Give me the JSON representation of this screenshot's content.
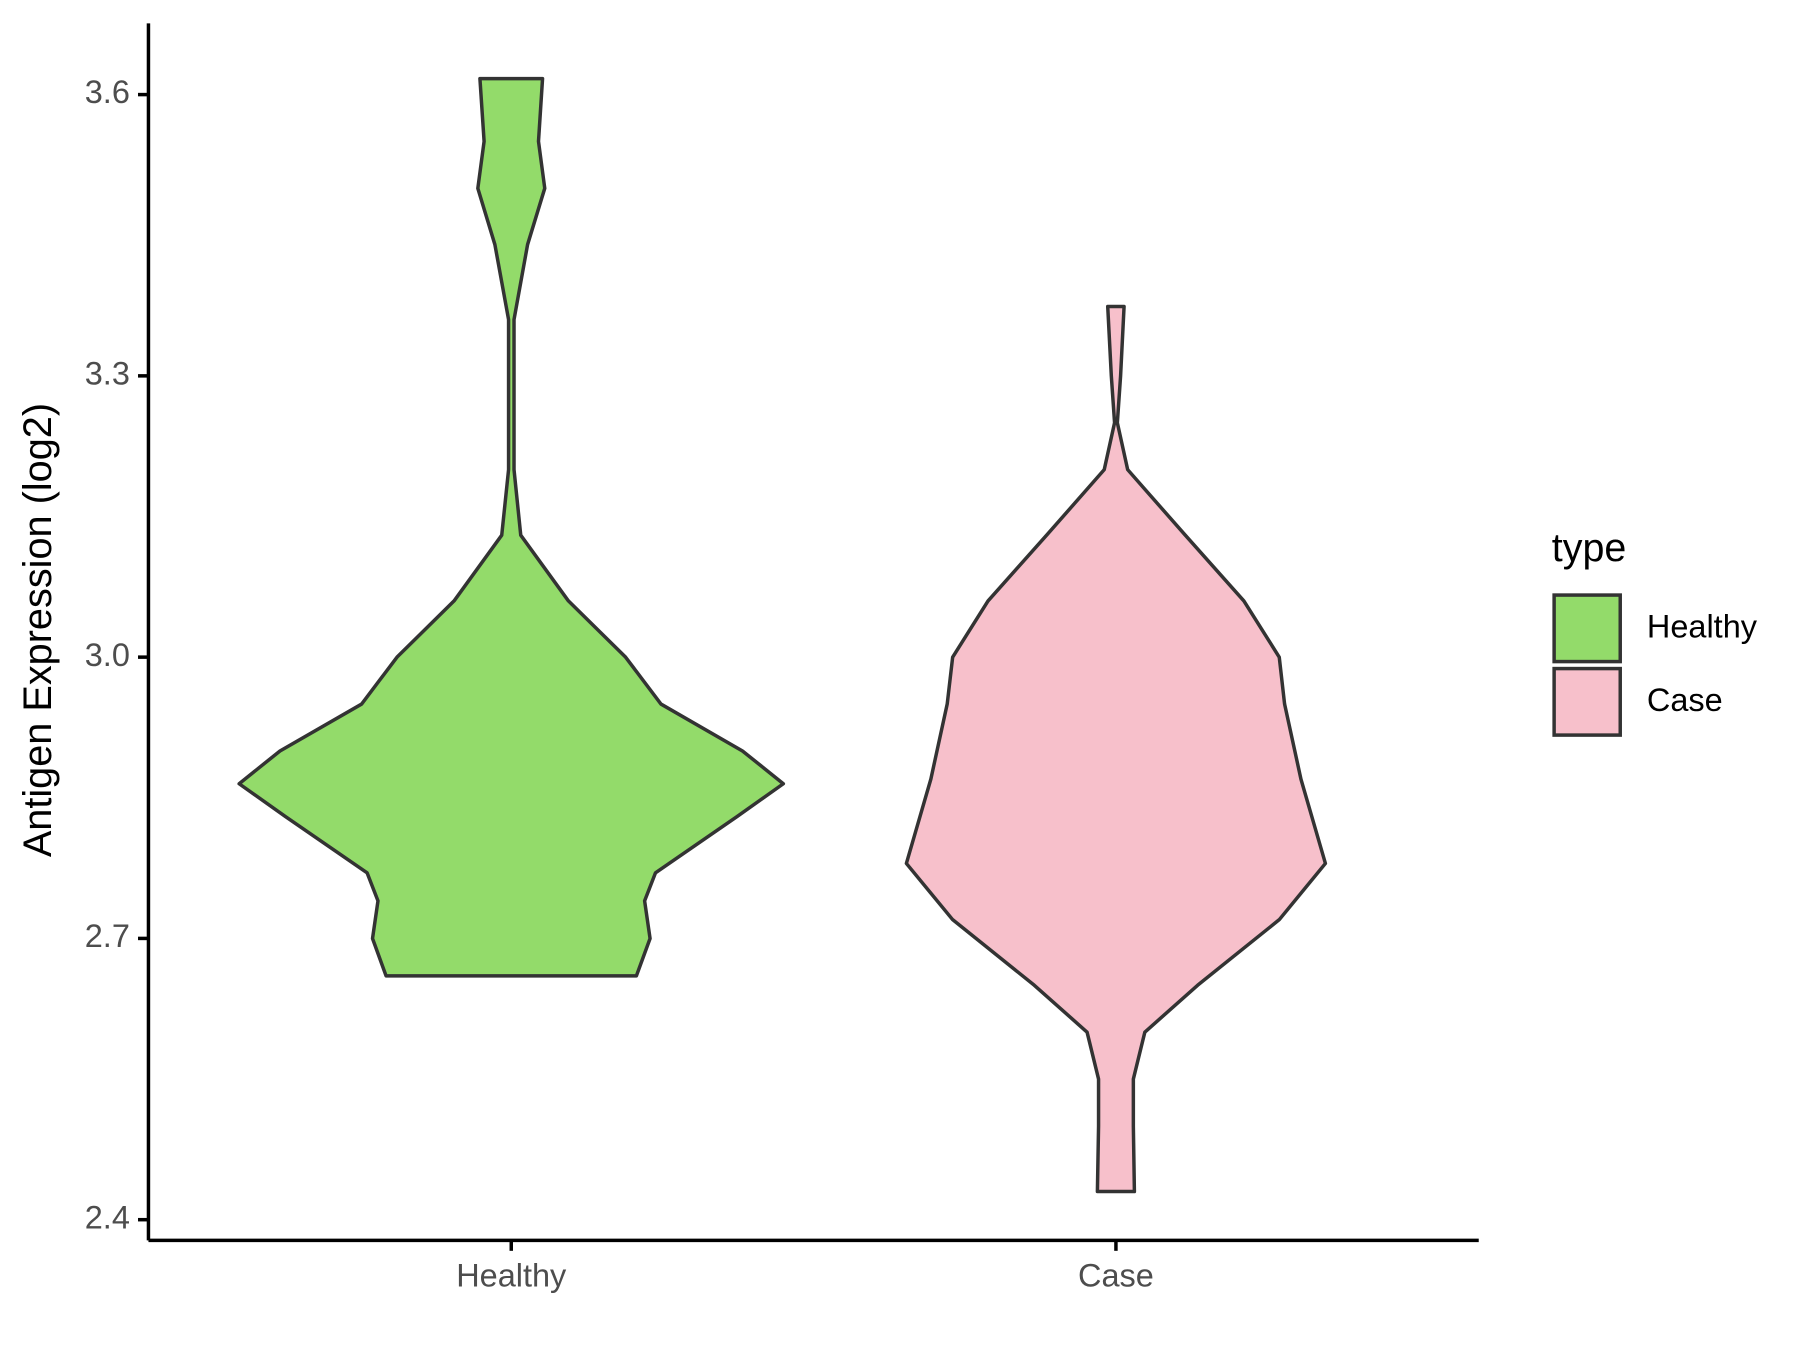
{
  "chart_data": {
    "type": "violin",
    "y_label": "Antigen Expression (log2)",
    "categories": [
      "Healthy",
      "Case"
    ],
    "legend_title": "type",
    "legend": "right",
    "grid": false,
    "ylim": [
      2.378,
      3.676
    ],
    "yticks": [
      2.4,
      2.7,
      {
        "value": 3,
        "label": "3.0"
      },
      3.3,
      3.6
    ],
    "series": [
      {
        "name": "Healthy",
        "color": "#93db6a",
        "y": [
          3.617,
          3.55,
          3.5,
          3.44,
          3.36,
          3.2,
          3.13,
          3.06,
          3.0,
          2.95,
          2.9,
          2.865,
          2.83,
          2.77,
          2.74,
          2.7,
          2.66
        ],
        "density": [
          0.115,
          0.1,
          0.123,
          0.06,
          0.01,
          0.01,
          0.035,
          0.21,
          0.42,
          0.55,
          0.85,
          1.0,
          0.83,
          0.53,
          0.49,
          0.51,
          0.46
        ]
      },
      {
        "name": "Case",
        "color": "#f7c0cb",
        "y": [
          3.374,
          3.3,
          3.25,
          3.2,
          3.13,
          3.06,
          3.0,
          2.95,
          2.87,
          2.78,
          2.72,
          2.65,
          2.6,
          2.55,
          2.5,
          2.43
        ],
        "density": [
          0.03,
          0.017,
          0.005,
          0.043,
          0.255,
          0.47,
          0.6,
          0.62,
          0.68,
          0.77,
          0.6,
          0.3,
          0.106,
          0.064,
          0.064,
          0.068
        ]
      }
    ]
  }
}
